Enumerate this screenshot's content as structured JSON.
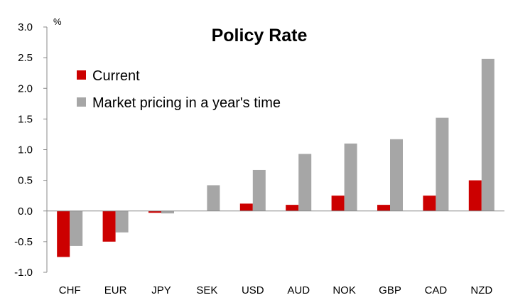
{
  "chart_data": {
    "type": "bar",
    "title": "Policy Rate",
    "unit_label": "%",
    "categories": [
      "CHF",
      "EUR",
      "JPY",
      "SEK",
      "USD",
      "AUD",
      "NOK",
      "GBP",
      "CAD",
      "NZD"
    ],
    "series": [
      {
        "name": "Current",
        "color": "#cc0000",
        "values": [
          -0.75,
          -0.5,
          -0.03,
          0.0,
          0.12,
          0.1,
          0.25,
          0.1,
          0.25,
          0.5
        ]
      },
      {
        "name": "Market pricing in a year's time",
        "color": "#a6a6a6",
        "values": [
          -0.57,
          -0.35,
          -0.04,
          0.42,
          0.67,
          0.93,
          1.1,
          1.17,
          1.52,
          2.48
        ]
      }
    ],
    "yticks": [
      "3.0",
      "2.5",
      "2.0",
      "1.5",
      "1.0",
      "0.5",
      "0.0",
      "-0.5",
      "-1.0"
    ],
    "ylim": [
      -1.0,
      3.0
    ],
    "grid": false,
    "legend_position": "top-left"
  }
}
